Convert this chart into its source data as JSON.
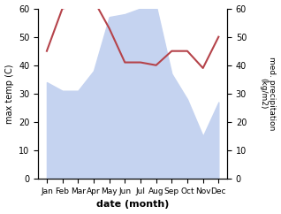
{
  "months": [
    "Jan",
    "Feb",
    "Mar",
    "Apr",
    "May",
    "Jun",
    "Jul",
    "Aug",
    "Sep",
    "Oct",
    "Nov",
    "Dec"
  ],
  "temperature": [
    45,
    60,
    61,
    63,
    53,
    41,
    41,
    40,
    45,
    45,
    39,
    50
  ],
  "precipitation": [
    34,
    31,
    31,
    38,
    57,
    58,
    60,
    61,
    37,
    28,
    15,
    27
  ],
  "temp_color": "#b5434a",
  "precip_fill_color": "#c5d3f0",
  "ylabel_left": "max temp (C)",
  "ylabel_right": "med. precipitation\n(kg/m2)",
  "xlabel": "date (month)",
  "ylim_left": [
    0,
    60
  ],
  "ylim_right": [
    0,
    60
  ],
  "yticks": [
    0,
    10,
    20,
    30,
    40,
    50,
    60
  ]
}
